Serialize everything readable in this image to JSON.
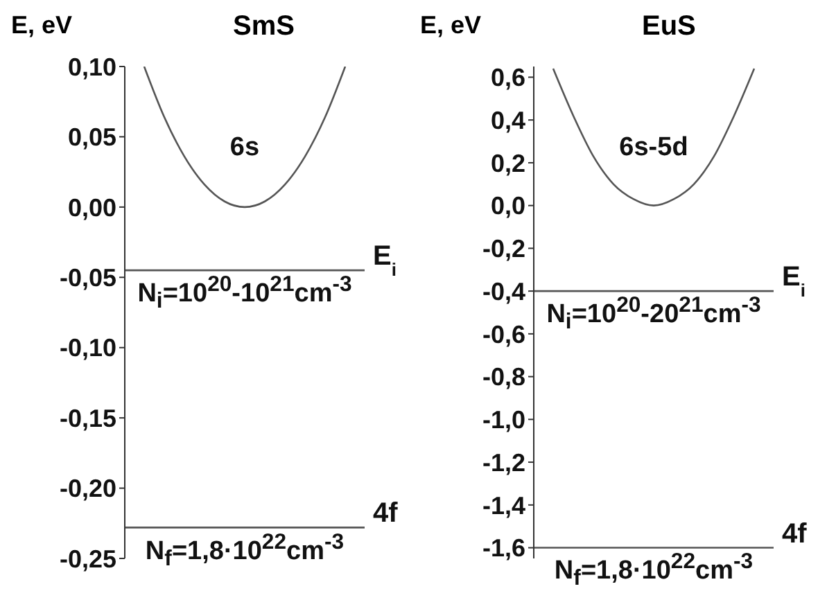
{
  "chart_data": [
    {
      "type": "line",
      "title": "SmS",
      "ylabel": "E, eV",
      "tick_labels": "y",
      "marker": "none",
      "line_style": "solid",
      "categories": [
        null,
        null,
        null,
        null,
        null,
        null,
        null,
        null,
        null,
        null,
        null
      ],
      "series": [
        {
          "color": "#555555",
          "values": [
            0.1,
            0.064,
            0.036,
            0.016,
            0.004,
            0,
            0.004,
            0.016,
            0.036,
            0.064,
            0.1
          ]
        }
      ],
      "ylim": [
        -0.25,
        0.1
      ],
      "yticks": [
        {
          "value": 0.1,
          "label": "0,10"
        },
        {
          "value": 0.05,
          "label": "0,05"
        },
        {
          "value": 0,
          "label": "0,00"
        },
        {
          "value": -0.05,
          "label": "-0,05"
        },
        {
          "value": -0.1,
          "label": "-0,10"
        },
        {
          "value": -0.15,
          "label": "-0,15"
        },
        {
          "value": -0.2,
          "label": "-0,20"
        },
        {
          "value": -0.25,
          "label": "-0,25"
        }
      ],
      "ref_lines": [
        {
          "axis": "y",
          "value": -0.045,
          "label": "E$_{i}$",
          "color": "#555555"
        },
        {
          "axis": "y",
          "value": -0.228,
          "label": "4f",
          "color": "#555555"
        }
      ],
      "annotations": [
        "6s",
        "N$_{i}$=10$^{20}$-10$^{21}$cm$^{-3}$",
        "N$_{f}$=1,8·10$^{22}$cm$^{-3}$"
      ]
    },
    {
      "type": "line",
      "title": "EuS",
      "ylabel": "E, eV",
      "tick_labels": "y",
      "marker": "none",
      "line_style": "solid",
      "categories": [
        null,
        null,
        null,
        null,
        null,
        null,
        null,
        null,
        null,
        null,
        null
      ],
      "series": [
        {
          "color": "#555555",
          "values": [
            0.64,
            0.42,
            0.23,
            0.1,
            0.03,
            0,
            0.03,
            0.1,
            0.23,
            0.42,
            0.64
          ]
        }
      ],
      "ylim": [
        -1.65,
        0.65
      ],
      "yticks": [
        {
          "value": 0.6,
          "label": "0,6"
        },
        {
          "value": 0.4,
          "label": "0,4"
        },
        {
          "value": 0.2,
          "label": "0,2"
        },
        {
          "value": 0,
          "label": "0,0"
        },
        {
          "value": -0.2,
          "label": "-0,2"
        },
        {
          "value": -0.4,
          "label": "-0,4"
        },
        {
          "value": -0.6,
          "label": "-0,6"
        },
        {
          "value": -0.8,
          "label": "-0,8"
        },
        {
          "value": -1,
          "label": "-1,0"
        },
        {
          "value": -1.2,
          "label": "-1,2"
        },
        {
          "value": -1.4,
          "label": "-1,4"
        },
        {
          "value": -1.6,
          "label": "-1,6"
        }
      ],
      "ref_lines": [
        {
          "axis": "y",
          "value": -0.4,
          "label": "E$_{i}$",
          "color": "#555555"
        },
        {
          "axis": "y",
          "value": -1.6,
          "label": "4f",
          "color": "#555555"
        }
      ],
      "annotations": [
        "6s-5d",
        "N$_{i}$=10$^{20}$-20$^{21}$cm$^{-3}$",
        "N$_{f}$=1,8·10$^{22}$cm$^{-3}$"
      ]
    }
  ]
}
